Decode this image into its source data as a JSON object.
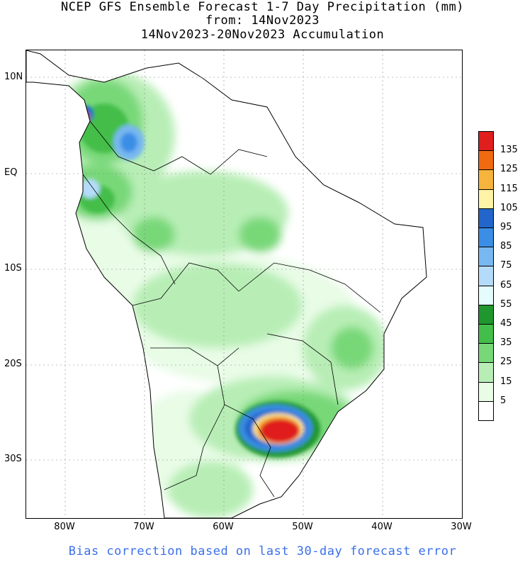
{
  "title": {
    "line1": "NCEP GFS Ensemble Forecast 1-7 Day Precipitation (mm)",
    "line2": "from: 14Nov2023",
    "line3": "14Nov2023-20Nov2023 Accumulation"
  },
  "footer": "Bias correction based on last 30-day forecast error",
  "axes": {
    "lat_labels": [
      "10N",
      "EQ",
      "10S",
      "20S",
      "30S"
    ],
    "lon_labels": [
      "80W",
      "70W",
      "60W",
      "50W",
      "40W",
      "30W"
    ]
  },
  "legend": {
    "labels": [
      "135",
      "125",
      "115",
      "105",
      "95",
      "85",
      "75",
      "65",
      "55",
      "45",
      "35",
      "25",
      "15",
      "5"
    ],
    "colors": [
      "#e01e1e",
      "#f06a10",
      "#f6b43c",
      "#fff3a8",
      "#2266cc",
      "#3a8ee6",
      "#78b8f0",
      "#b4dcfa",
      "#e4fcfc",
      "#20962e",
      "#44be4a",
      "#78d878",
      "#b8eeb6",
      "#e8fce6",
      "#ffffff"
    ]
  },
  "colors": {
    "footer_text": "#3a6fe8",
    "land_outline": "#000000"
  }
}
